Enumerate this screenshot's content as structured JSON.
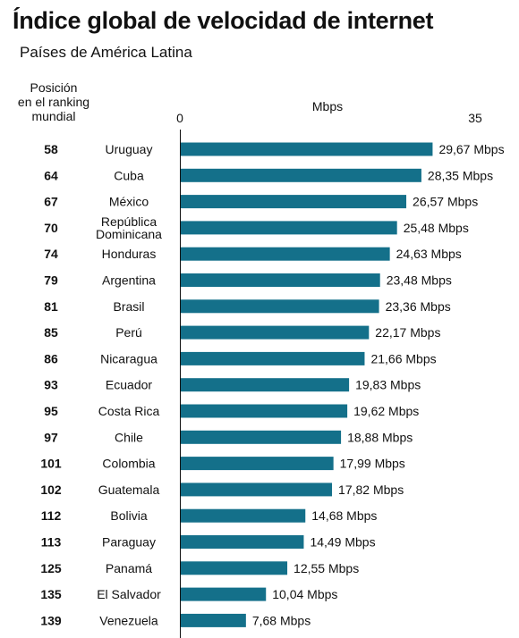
{
  "header": {
    "title": "Índice global de velocidad de internet",
    "subtitle": "Países de América Latina"
  },
  "rank_column": {
    "label_lines": [
      "Posición",
      "en el ranking",
      "mundial"
    ]
  },
  "colors": {
    "bar": "#14708a"
  },
  "chart_data": {
    "type": "bar",
    "orientation": "horizontal",
    "title": "Índice global de velocidad de internet",
    "subtitle": "Países de América Latina",
    "xlabel": "Mbps",
    "xlim": [
      0,
      35
    ],
    "ticks": [
      "0",
      "35"
    ],
    "value_suffix": " Mbps",
    "grid": false,
    "categories": [
      {
        "rank": "58",
        "country": "Uruguay",
        "value": 29.67,
        "label": "29,67 Mbps"
      },
      {
        "rank": "64",
        "country": "Cuba",
        "value": 28.35,
        "label": "28,35 Mbps"
      },
      {
        "rank": "67",
        "country": "México",
        "value": 26.57,
        "label": "26,57 Mbps"
      },
      {
        "rank": "70",
        "country": "República Dominicana",
        "country_lines": [
          "República",
          "Dominicana"
        ],
        "value": 25.48,
        "label": "25,48 Mbps"
      },
      {
        "rank": "74",
        "country": "Honduras",
        "value": 24.63,
        "label": "24,63 Mbps"
      },
      {
        "rank": "79",
        "country": "Argentina",
        "value": 23.48,
        "label": "23,48 Mbps"
      },
      {
        "rank": "81",
        "country": "Brasil",
        "value": 23.36,
        "label": "23,36 Mbps"
      },
      {
        "rank": "85",
        "country": "Perú",
        "value": 22.17,
        "label": "22,17 Mbps"
      },
      {
        "rank": "86",
        "country": "Nicaragua",
        "value": 21.66,
        "label": "21,66 Mbps"
      },
      {
        "rank": "93",
        "country": "Ecuador",
        "value": 19.83,
        "label": "19,83 Mbps"
      },
      {
        "rank": "95",
        "country": "Costa Rica",
        "value": 19.62,
        "label": "19,62 Mbps"
      },
      {
        "rank": "97",
        "country": "Chile",
        "value": 18.88,
        "label": "18,88 Mbps"
      },
      {
        "rank": "101",
        "country": "Colombia",
        "value": 17.99,
        "label": "17,99 Mbps"
      },
      {
        "rank": "102",
        "country": "Guatemala",
        "value": 17.82,
        "label": "17,82 Mbps"
      },
      {
        "rank": "112",
        "country": "Bolivia",
        "value": 14.68,
        "label": "14,68 Mbps"
      },
      {
        "rank": "113",
        "country": "Paraguay",
        "value": 14.49,
        "label": "14,49 Mbps"
      },
      {
        "rank": "125",
        "country": "Panamá",
        "value": 12.55,
        "label": "12,55 Mbps"
      },
      {
        "rank": "135",
        "country": "El Salvador",
        "value": 10.04,
        "label": "10,04 Mbps"
      },
      {
        "rank": "139",
        "country": "Venezuela",
        "value": 7.68,
        "label": "7,68 Mbps"
      }
    ]
  }
}
